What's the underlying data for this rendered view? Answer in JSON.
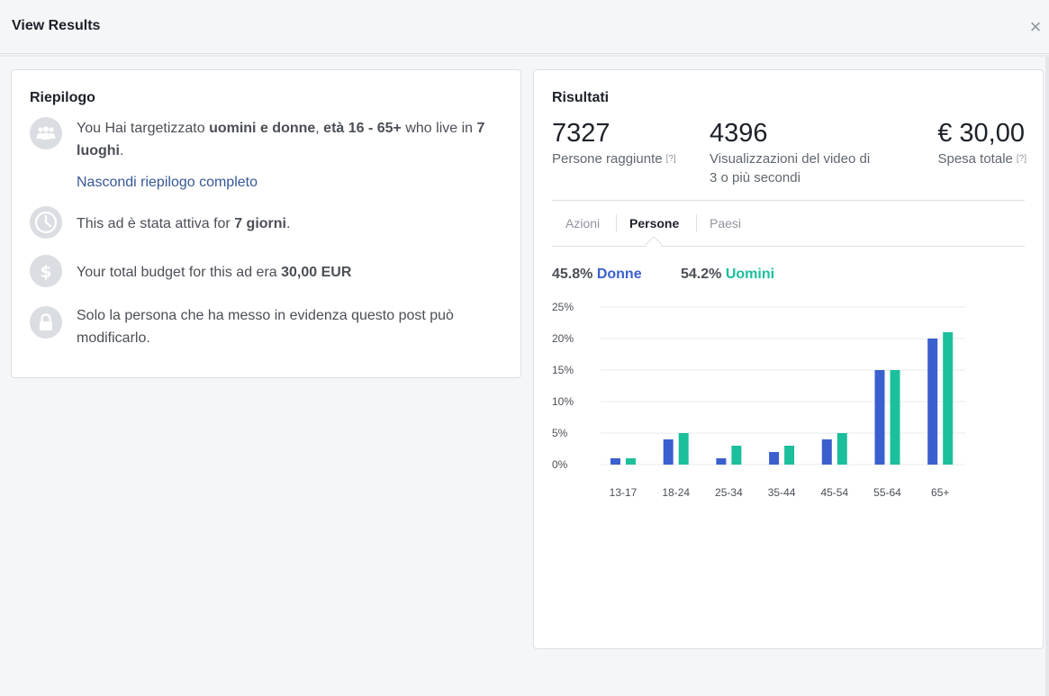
{
  "header": {
    "title": "View Results",
    "close_glyph": "×"
  },
  "summary": {
    "title": "Riepilogo",
    "targeting": {
      "prefix": "You Hai targetizzato ",
      "audience": "uomini e donne",
      "sep": ", ",
      "age": "età 16 - 65+",
      "mid": " who live in ",
      "places": "7 luoghi",
      "suffix": "."
    },
    "toggle_link": "Nascondi riepilogo completo",
    "duration": {
      "prefix": "This ad è stata attiva for ",
      "value": "7 giorni",
      "suffix": "."
    },
    "budget": {
      "prefix": "Your total budget for this ad era ",
      "value": "30,00 EUR"
    },
    "permission": "Solo la persona che ha messo in evidenza questo post può modificarlo.",
    "icons": [
      "people-icon",
      "clock-icon",
      "dollar-icon",
      "lock-icon"
    ]
  },
  "results": {
    "title": "Risultati",
    "metrics": [
      {
        "value": "7327",
        "label": "Persone raggiunte",
        "help": "[?]"
      },
      {
        "value": "4396",
        "label": "Visualizzazioni del video di 3 o più secondi"
      },
      {
        "value": "€ 30,00",
        "label": "Spesa totale",
        "help": "[?]"
      }
    ],
    "tabs": [
      "Azioni",
      "Persone",
      "Paesi"
    ],
    "active_tab": "Persone",
    "gender": {
      "women_pct": "45.8%",
      "women_label": "Donne",
      "men_pct": "54.2%",
      "men_label": "Uomini"
    }
  },
  "colors": {
    "women": "#3b5fcf",
    "men": "#1cbf9c",
    "link": "#365899"
  },
  "chart_data": {
    "type": "bar",
    "categories": [
      "13-17",
      "18-24",
      "25-34",
      "35-44",
      "45-54",
      "55-64",
      "65+"
    ],
    "series": [
      {
        "name": "Donne",
        "values": [
          1,
          4,
          1,
          2,
          4,
          15,
          20
        ]
      },
      {
        "name": "Uomini",
        "values": [
          1,
          5,
          3,
          3,
          5,
          15,
          21
        ]
      }
    ],
    "yticks": [
      "0%",
      "5%",
      "10%",
      "15%",
      "20%",
      "25%"
    ],
    "ylim": [
      0,
      25
    ],
    "grid": true
  }
}
